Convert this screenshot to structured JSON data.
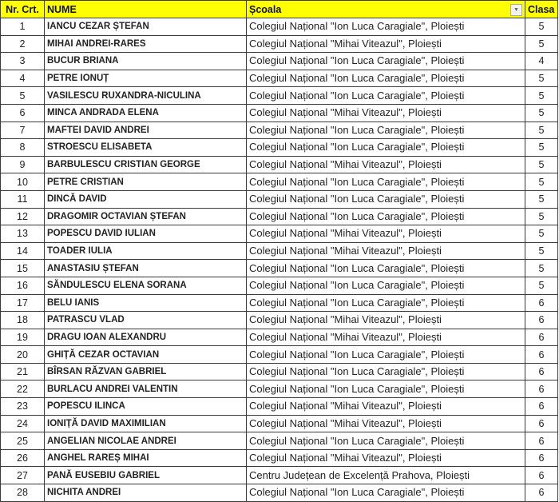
{
  "header": {
    "nr": "Nr. Crt.",
    "nume": "NUME",
    "scoala": "Școala",
    "clasa": "Clasa",
    "filter_icon": "dropdown-filter-icon"
  },
  "colors": {
    "header_bg": "#ffff00",
    "grid": "#3a3a3a"
  },
  "rows": [
    {
      "nr": "1",
      "nume": "IANCU CEZAR ȘTEFAN",
      "scoala": "Colegiul Național \"Ion Luca Caragiale\", Ploiești",
      "clasa": "5"
    },
    {
      "nr": "2",
      "nume": "MIHAI ANDREI-RARES",
      "scoala": "Colegiul Național \"Mihai Viteazul\", Ploiești",
      "clasa": "5"
    },
    {
      "nr": "3",
      "nume": "BUCUR BRIANA",
      "scoala": "Colegiul Național \"Ion Luca Caragiale\", Ploiești",
      "clasa": "4"
    },
    {
      "nr": "4",
      "nume": "PETRE IONUȚ",
      "scoala": "Colegiul Național \"Ion Luca Caragiale\", Ploiești",
      "clasa": "5"
    },
    {
      "nr": "5",
      "nume": "VASILESCU RUXANDRA-NICULINA",
      "scoala": "Colegiul Național \"Ion Luca Caragiale\", Ploiești",
      "clasa": "5"
    },
    {
      "nr": "6",
      "nume": "MINCA ANDRADA ELENA",
      "scoala": "Colegiul Național \"Mihai Viteazul\", Ploiești",
      "clasa": "5"
    },
    {
      "nr": "7",
      "nume": "MAFTEI DAVID ANDREI",
      "scoala": "Colegiul Național \"Ion Luca Caragiale\", Ploiești",
      "clasa": "5"
    },
    {
      "nr": "8",
      "nume": "STROESCU ELISABETA",
      "scoala": "Colegiul Național \"Ion Luca Caragiale\", Ploiești",
      "clasa": "5"
    },
    {
      "nr": "9",
      "nume": "BARBULESCU CRISTIAN GEORGE",
      "scoala": "Colegiul Național \"Mihai Viteazul\", Ploiești",
      "clasa": "5"
    },
    {
      "nr": "10",
      "nume": "PETRE CRISTIAN",
      "scoala": "Colegiul Național \"Ion Luca Caragiale\", Ploiești",
      "clasa": "5"
    },
    {
      "nr": "11",
      "nume": "DINCĂ DAVID",
      "scoala": "Colegiul Național \"Ion Luca Caragiale\", Ploiești",
      "clasa": "5"
    },
    {
      "nr": "12",
      "nume": "DRAGOMIR OCTAVIAN ȘTEFAN",
      "scoala": "Colegiul Național \"Ion Luca Caragiale\", Ploiești",
      "clasa": "5"
    },
    {
      "nr": "13",
      "nume": "POPESCU DAVID IULIAN",
      "scoala": "Colegiul Național \"Mihai Viteazul\", Ploiești",
      "clasa": "5"
    },
    {
      "nr": "14",
      "nume": "TOADER IULIA",
      "scoala": "Colegiul Național \"Mihai Viteazul\", Ploiești",
      "clasa": "5"
    },
    {
      "nr": "15",
      "nume": "ANASTASIU ȘTEFAN",
      "scoala": "Colegiul Național \"Ion Luca Caragiale\", Ploiești",
      "clasa": "5"
    },
    {
      "nr": "16",
      "nume": "SĂNDULESCU ELENA SORANA",
      "scoala": "Colegiul Național \"Ion Luca Caragiale\", Ploiești",
      "clasa": "5"
    },
    {
      "nr": "17",
      "nume": "BELU IANIS",
      "scoala": "Colegiul Național \"Ion Luca Caragiale\", Ploiești",
      "clasa": "6"
    },
    {
      "nr": "18",
      "nume": "PATRASCU VLAD",
      "scoala": "Colegiul Național \"Mihai Viteazul\", Ploiești",
      "clasa": "6"
    },
    {
      "nr": "19",
      "nume": "DRAGU IOAN ALEXANDRU",
      "scoala": "Colegiul Național \"Mihai Viteazul\", Ploiești",
      "clasa": "6"
    },
    {
      "nr": "20",
      "nume": "GHIȚĂ CEZAR OCTAVIAN",
      "scoala": "Colegiul Național \"Ion Luca Caragiale\", Ploiești",
      "clasa": "6"
    },
    {
      "nr": "21",
      "nume": "BÎRSAN RĂZVAN GABRIEL",
      "scoala": "Colegiul Național \"Ion Luca Caragiale\", Ploiești",
      "clasa": "6"
    },
    {
      "nr": "22",
      "nume": "BURLACU ANDREI VALENTIN",
      "scoala": "Colegiul Național \"Ion Luca Caragiale\", Ploiești",
      "clasa": "6"
    },
    {
      "nr": "23",
      "nume": "POPESCU ILINCA",
      "scoala": "Colegiul Național \"Mihai Viteazul\", Ploiești",
      "clasa": "6"
    },
    {
      "nr": "24",
      "nume": "IONIȚĂ DAVID MAXIMILIAN",
      "scoala": "Colegiul Național \"Mihai Viteazul\", Ploiești",
      "clasa": "6"
    },
    {
      "nr": "25",
      "nume": "ANGELIAN NICOLAE ANDREI",
      "scoala": "Colegiul Național \"Ion Luca Caragiale\", Ploiești",
      "clasa": "6"
    },
    {
      "nr": "26",
      "nume": "ANGHEL RAREȘ MIHAI",
      "scoala": "Colegiul Național \"Mihai Viteazul\", Ploiești",
      "clasa": "6"
    },
    {
      "nr": "27",
      "nume": "PANĂ EUSEBIU GABRIEL",
      "scoala": "Centru Județean de Excelență Prahova, Ploiești",
      "clasa": "6"
    },
    {
      "nr": "28",
      "nume": "NICHITA ANDREI",
      "scoala": "Colegiul Național \"Ion Luca Caragiale\", Ploiești",
      "clasa": "6"
    }
  ]
}
